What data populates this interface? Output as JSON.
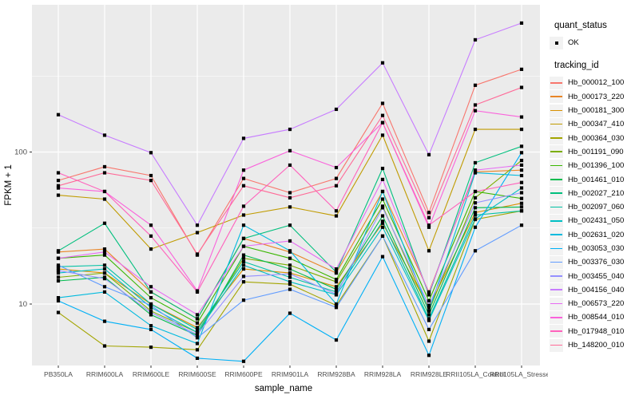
{
  "figure": {
    "background": "#ffffff",
    "panel_color": "#EBEBEB",
    "gridline_color": "#ffffff",
    "tick_text_color": "#4D4D4D",
    "point_color": "#000000",
    "legend_key_fill": "#F2F2F2"
  },
  "legend": {
    "quant_status": {
      "title": "quant_status",
      "items": [
        {
          "label": "OK"
        }
      ]
    },
    "tracking": {
      "title": "tracking_id"
    }
  },
  "chart_data": {
    "type": "line",
    "title": "",
    "xlabel": "sample_name",
    "ylabel": "FPKM + 1",
    "y_scale": "log10",
    "y_tick_labels": [
      "100",
      "10"
    ],
    "y_ticks": [
      100,
      10
    ],
    "y_minor_gridlines": [
      316.2,
      31.62
    ],
    "ylim": [
      3.9,
      920
    ],
    "grid": true,
    "legend_position": "right",
    "point_shape": "small-black-square",
    "categories": [
      "PB350LA",
      "RRIM600LA",
      "RRIM600LE",
      "RRIM600SE",
      "RRIM600PE",
      "RRIM901LA",
      "RRIM928BA",
      "RRIM928LA",
      "RRIM928LE",
      "RRII105LA_Control",
      "RRII105LA_Stressed"
    ],
    "series": [
      {
        "name": "Hb_000012_100",
        "color": "#F8766D",
        "values": [
          65,
          80,
          70,
          21,
          67,
          54,
          67,
          209,
          40,
          275,
          350
        ]
      },
      {
        "name": "Hb_000173_220",
        "color": "#E88526",
        "values": [
          22,
          23,
          12,
          8,
          27,
          22,
          16,
          55,
          12,
          74,
          76
        ]
      },
      {
        "name": "Hb_000181_300",
        "color": "#D89000",
        "values": [
          17,
          16,
          10,
          7,
          17,
          16,
          13,
          34,
          9.5,
          40,
          46
        ]
      },
      {
        "name": "Hb_000347_410",
        "color": "#C09B00",
        "values": [
          52,
          49,
          23,
          29.5,
          38.5,
          43.5,
          38,
          129,
          22.4,
          141,
          141
        ]
      },
      {
        "name": "Hb_000364_030",
        "color": "#A3A500",
        "values": [
          8.8,
          5.3,
          5.2,
          5,
          14,
          13.5,
          9.8,
          28,
          5.7,
          36,
          41
        ]
      },
      {
        "name": "Hb_001191_090",
        "color": "#7CAE00",
        "values": [
          15,
          16,
          9,
          6.5,
          20,
          18,
          14,
          44,
          9,
          50,
          88
        ]
      },
      {
        "name": "Hb_001396_100",
        "color": "#39B600",
        "values": [
          20,
          21,
          11,
          7.5,
          24,
          20,
          14.5,
          49,
          10.5,
          55,
          49.5
        ]
      },
      {
        "name": "Hb_001461_010",
        "color": "#00BB4E",
        "values": [
          14.2,
          15,
          8.5,
          6.2,
          21,
          17,
          12.5,
          38,
          8.5,
          43,
          43.5
        ]
      },
      {
        "name": "Hb_002027_210",
        "color": "#00BF7D",
        "values": [
          22.4,
          34,
          12,
          8,
          27,
          33,
          16.2,
          78,
          11.5,
          85,
          109
        ]
      },
      {
        "name": "Hb_002097_060",
        "color": "#00C1A3",
        "values": [
          17.6,
          18,
          10,
          6.8,
          19,
          15,
          12,
          35,
          8,
          38.5,
          41
        ]
      },
      {
        "name": "Hb_002431_050",
        "color": "#00BFC4",
        "values": [
          16,
          17,
          9.5,
          6.5,
          18,
          14,
          11.5,
          32,
          7.8,
          36.3,
          58
        ]
      },
      {
        "name": "Hb_002631_020",
        "color": "#00BADE",
        "values": [
          11,
          12,
          7.2,
          5.5,
          33,
          22.4,
          10,
          55,
          9,
          73,
          70
        ]
      },
      {
        "name": "Hb_003053_030",
        "color": "#00B0F6",
        "values": [
          10.5,
          7.7,
          6.8,
          4.4,
          4.2,
          8.7,
          5.8,
          20.5,
          4.6,
          32,
          99
        ]
      },
      {
        "name": "Hb_003376_030",
        "color": "#619CFF",
        "values": [
          18,
          13,
          9.8,
          6,
          10.6,
          12.5,
          9.5,
          28,
          6.8,
          22.4,
          33
        ]
      },
      {
        "name": "Hb_003455_040",
        "color": "#9590FF",
        "values": [
          16.6,
          14.7,
          8.8,
          6.3,
          15.2,
          15.8,
          11.6,
          43,
          9.8,
          46.3,
          54
        ]
      },
      {
        "name": "Hb_004156_040",
        "color": "#C77CFF",
        "values": [
          176,
          129,
          99,
          33,
          123,
          141,
          191,
          386,
          96,
          547,
          705
        ]
      },
      {
        "name": "Hb_006573_220",
        "color": "#E76BF3",
        "values": [
          20,
          22,
          13,
          8.5,
          24,
          26,
          17,
          66,
          11.8,
          76,
          82
        ]
      },
      {
        "name": "Hb_008544_010",
        "color": "#FA62DB",
        "values": [
          58,
          55,
          33,
          12.2,
          76,
          102,
          79,
          156,
          32,
          187,
          170
        ]
      },
      {
        "name": "Hb_017948_010",
        "color": "#FF62BC",
        "values": [
          73,
          55,
          28,
          12,
          44,
          82,
          41,
          156,
          33,
          55,
          63
        ]
      },
      {
        "name": "Hb_148200_010",
        "color": "#FF6A98",
        "values": [
          60,
          73,
          65,
          21.3,
          60,
          50,
          60,
          174,
          37,
          204,
          266
        ]
      }
    ]
  }
}
